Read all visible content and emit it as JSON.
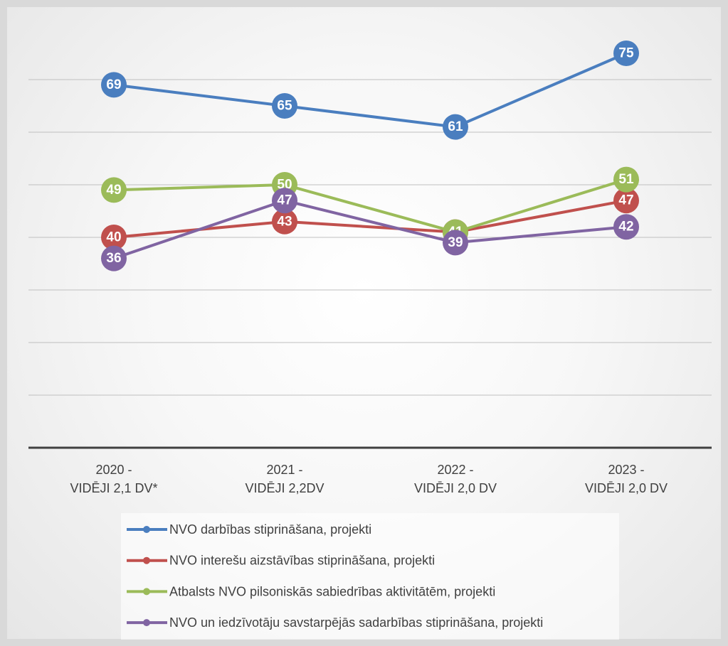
{
  "chart_data": {
    "type": "line",
    "categories": [
      "2020 -\nVIDĒJI 2,1 DV*",
      "2021 -\nVIDĒJI 2,2DV",
      "2022 -\nVIDĒJI 2,0 DV",
      "2023 -\nVIDĒJI 2,0 DV"
    ],
    "series": [
      {
        "name": "NVO darbības stiprināšana, projekti",
        "color": "#4a7ebf",
        "values": [
          69,
          65,
          61,
          75
        ]
      },
      {
        "name": "NVO interešu aizstāvības stiprināšana, projekti",
        "color": "#c0504d",
        "values": [
          40,
          43,
          41,
          47
        ]
      },
      {
        "name": "Atbalsts NVO pilsoniskās sabiedrības aktivitātēm, projekti",
        "color": "#9bbb59",
        "values": [
          49,
          50,
          41,
          51
        ]
      },
      {
        "name": "NVO un iedzīvotāju savstarpējās sadarbības stiprināšana, projekti",
        "color": "#8064a2",
        "values": [
          36,
          47,
          39,
          42
        ]
      }
    ],
    "ylim": [
      0,
      80
    ],
    "yticks": [
      0,
      10,
      20,
      30,
      40,
      50,
      60,
      70
    ],
    "grid": true,
    "data_labels": true,
    "legend": "bottom"
  }
}
